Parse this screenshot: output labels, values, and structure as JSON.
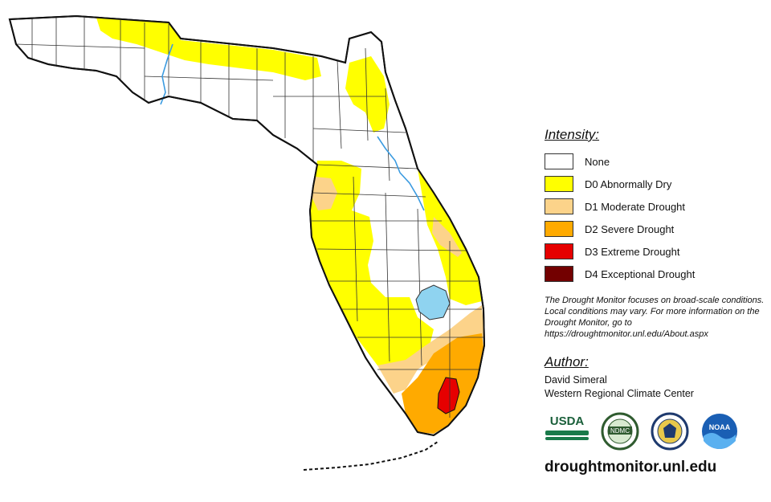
{
  "legend": {
    "title": "Intensity:",
    "items": [
      {
        "label": "None",
        "color": "#ffffff"
      },
      {
        "label": "D0 Abnormally Dry",
        "color": "#ffff00"
      },
      {
        "label": "D1 Moderate Drought",
        "color": "#fcd38a"
      },
      {
        "label": "D2 Severe Drought",
        "color": "#ffaa00"
      },
      {
        "label": "D3 Extreme Drought",
        "color": "#e60000"
      },
      {
        "label": "D4 Exceptional Drought",
        "color": "#730000"
      }
    ]
  },
  "note": "The Drought Monitor focuses on broad-scale conditions. Local conditions may vary. For more information on the Drought Monitor, go to https://droughtmonitor.unl.edu/About.aspx",
  "author": {
    "title": "Author:",
    "name": "David Simeral",
    "org": "Western Regional Climate Center"
  },
  "logos": {
    "usda": "USDA",
    "ndmc": "NDMC",
    "noaa": "NOAA"
  },
  "site": "droughtmonitor.unl.edu",
  "colors": {
    "water": "#8fd3f0",
    "river": "#3b9be0",
    "border": "#222222"
  }
}
